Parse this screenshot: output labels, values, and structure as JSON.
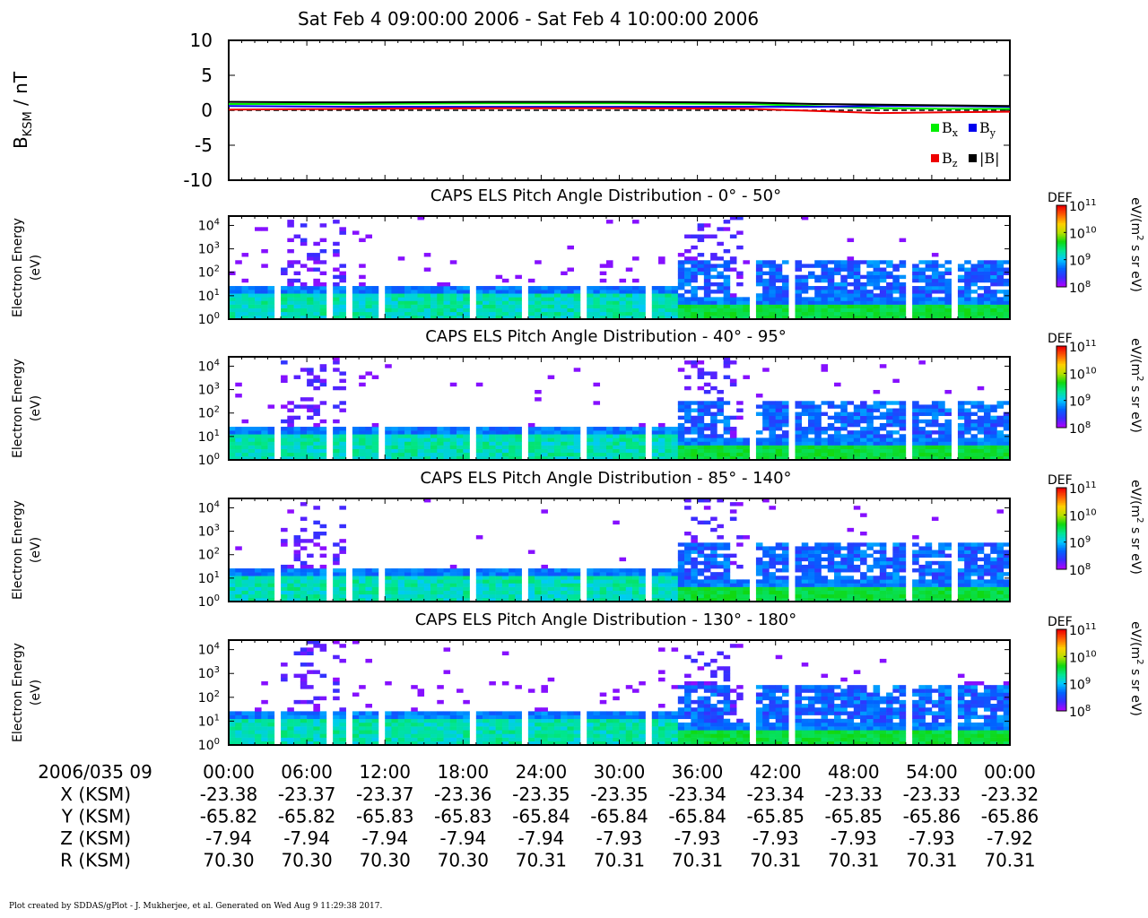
{
  "title": "Sat Feb 4 09:00:00 2006 - Sat Feb 4 10:00:00 2006",
  "footer": "Plot created by SDDAS/gPlot - J. Mukherjee, et al.  Generated on Wed Aug 9 11:29:38 2017.",
  "colors": {
    "bx": "#00ee00",
    "by": "#0000ee",
    "bz": "#ee0000",
    "bmag": "#000000",
    "spectrogram_colormap": [
      "#b000ff",
      "#3a2cff",
      "#0064ff",
      "#00c8ff",
      "#00e690",
      "#10d810",
      "#b8e000",
      "#ffd000",
      "#ff6000",
      "#ee0000"
    ]
  },
  "chart_data": [
    {
      "type": "line",
      "ylabel": "B",
      "ylabel_sub": "KSM",
      "ylabel_unit": " / nT",
      "ylim": [
        -10,
        10
      ],
      "yticks": [
        10,
        5,
        0,
        -5,
        -10
      ],
      "xlim_minutes": [
        0,
        60
      ],
      "zero_line": "dashed",
      "legend": [
        {
          "base": "B",
          "sub": "x",
          "color": "#00ee00"
        },
        {
          "base": "B",
          "sub": "y",
          "color": "#0000ee"
        },
        {
          "base": "B",
          "sub": "z",
          "color": "#ee0000"
        },
        {
          "base": "|B|",
          "sub": "",
          "color": "#000000"
        }
      ],
      "legend_position": "lower-right",
      "series": [
        {
          "key": "Bx",
          "x": [
            0,
            10,
            20,
            30,
            40,
            45,
            50,
            55,
            60
          ],
          "y": [
            0.9,
            0.9,
            1.0,
            1.0,
            0.9,
            0.6,
            0.3,
            0.2,
            0.2
          ]
        },
        {
          "key": "By",
          "x": [
            0,
            10,
            20,
            30,
            40,
            45,
            50,
            55,
            60
          ],
          "y": [
            0.6,
            0.5,
            0.5,
            0.5,
            0.5,
            0.5,
            0.6,
            0.6,
            0.5
          ]
        },
        {
          "key": "Bz",
          "x": [
            0,
            10,
            20,
            30,
            40,
            45,
            50,
            55,
            60
          ],
          "y": [
            0.1,
            0.2,
            0.3,
            0.3,
            0.2,
            -0.1,
            -0.4,
            -0.3,
            -0.2
          ]
        },
        {
          "key": "|B|",
          "x": [
            0,
            10,
            20,
            30,
            40,
            45,
            50,
            55,
            60
          ],
          "y": [
            1.2,
            1.1,
            1.2,
            1.2,
            1.1,
            0.9,
            0.8,
            0.7,
            0.6
          ]
        }
      ]
    },
    {
      "type": "heatmap",
      "title": "CAPS ELS Pitch Angle Distribution - 0° - 50°",
      "ylabel_line1": "Electron Energy",
      "ylabel_line2": "(eV)",
      "ylim_log10": [
        0,
        4.4
      ],
      "yticks_exp": [
        "4",
        "3",
        "2",
        "1",
        "0"
      ],
      "colorbar": {
        "label": "DEF",
        "unit_line1": "eV/(m",
        "unit_sup": "2",
        "unit_line2": " s sr eV)",
        "range_log10": [
          8,
          11
        ],
        "ticks_exp": [
          "11",
          "10",
          "9",
          "8"
        ]
      }
    },
    {
      "type": "heatmap",
      "title": "CAPS ELS Pitch Angle Distribution - 40° - 95°",
      "ylabel_line1": "Electron Energy",
      "ylabel_line2": "(eV)",
      "ylim_log10": [
        0,
        4.4
      ],
      "yticks_exp": [
        "4",
        "3",
        "2",
        "1",
        "0"
      ],
      "colorbar": {
        "label": "DEF",
        "unit_line1": "eV/(m",
        "unit_sup": "2",
        "unit_line2": " s sr eV)",
        "range_log10": [
          8,
          11
        ],
        "ticks_exp": [
          "11",
          "10",
          "9",
          "8"
        ]
      }
    },
    {
      "type": "heatmap",
      "title": "CAPS ELS Pitch Angle Distribution - 85° - 140°",
      "ylabel_line1": "Electron Energy",
      "ylabel_line2": "(eV)",
      "ylim_log10": [
        0,
        4.4
      ],
      "yticks_exp": [
        "4",
        "3",
        "2",
        "1",
        "0"
      ],
      "colorbar": {
        "label": "DEF",
        "unit_line1": "eV/(m",
        "unit_sup": "2",
        "unit_line2": " s sr eV)",
        "range_log10": [
          8,
          11
        ],
        "ticks_exp": [
          "11",
          "10",
          "9",
          "8"
        ]
      }
    },
    {
      "type": "heatmap",
      "title": "CAPS ELS Pitch Angle Distribution - 130° - 180°",
      "ylabel_line1": "Electron Energy",
      "ylabel_line2": "(eV)",
      "ylim_log10": [
        0,
        4.4
      ],
      "yticks_exp": [
        "4",
        "3",
        "2",
        "1",
        "0"
      ],
      "colorbar": {
        "label": "DEF",
        "unit_line1": "eV/(m",
        "unit_sup": "2",
        "unit_line2": " s sr eV)",
        "range_log10": [
          8,
          11
        ],
        "ticks_exp": [
          "11",
          "10",
          "9",
          "8"
        ]
      }
    }
  ],
  "x_axis": {
    "date_label": "2006/035 09",
    "ticks": [
      "00:00",
      "06:00",
      "12:00",
      "18:00",
      "24:00",
      "30:00",
      "36:00",
      "42:00",
      "48:00",
      "54:00",
      "00:00"
    ],
    "ephemeris": [
      {
        "label": "X (KSM)",
        "values": [
          "-23.38",
          "-23.37",
          "-23.37",
          "-23.36",
          "-23.35",
          "-23.35",
          "-23.34",
          "-23.34",
          "-23.33",
          "-23.33",
          "-23.32"
        ]
      },
      {
        "label": "Y (KSM)",
        "values": [
          "-65.82",
          "-65.82",
          "-65.83",
          "-65.83",
          "-65.84",
          "-65.84",
          "-65.84",
          "-65.85",
          "-65.85",
          "-65.86",
          "-65.86"
        ]
      },
      {
        "label": "Z (KSM)",
        "values": [
          "-7.94",
          "-7.94",
          "-7.94",
          "-7.94",
          "-7.94",
          "-7.93",
          "-7.93",
          "-7.93",
          "-7.93",
          "-7.93",
          "-7.92"
        ]
      },
      {
        "label": "R (KSM)",
        "values": [
          "70.30",
          "70.30",
          "70.30",
          "70.30",
          "70.31",
          "70.31",
          "70.31",
          "70.31",
          "70.31",
          "70.31",
          "70.31"
        ]
      }
    ]
  }
}
